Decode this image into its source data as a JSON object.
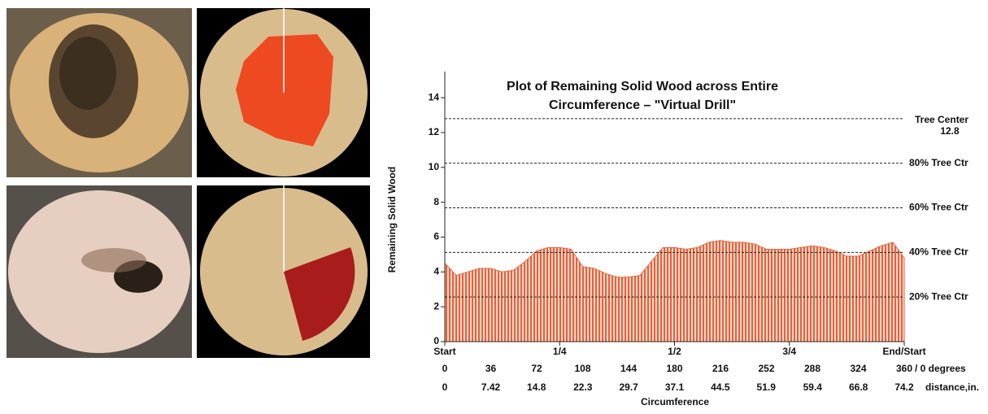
{
  "chart_data": {
    "type": "area",
    "title": [
      "Plot of Remaining Solid Wood across Entire",
      "Circumference –  \"Virtual Drill\""
    ],
    "ylabel": "Remaining Solid Wood",
    "xlabel": "Circumference",
    "x": [
      0,
      9,
      18,
      27,
      36,
      45,
      54,
      63,
      72,
      81,
      90,
      99,
      108,
      117,
      126,
      135,
      144,
      153,
      162,
      171,
      180,
      189,
      198,
      207,
      216,
      225,
      234,
      243,
      252,
      261,
      270,
      279,
      288,
      297,
      306,
      315,
      324,
      333,
      342,
      351,
      360
    ],
    "values": [
      4.5,
      3.8,
      4.0,
      4.2,
      4.2,
      4.0,
      4.1,
      4.6,
      5.2,
      5.4,
      5.4,
      5.3,
      4.3,
      4.2,
      3.9,
      3.7,
      3.7,
      3.8,
      4.6,
      5.4,
      5.4,
      5.3,
      5.4,
      5.7,
      5.8,
      5.7,
      5.7,
      5.6,
      5.3,
      5.3,
      5.3,
      5.4,
      5.5,
      5.4,
      5.2,
      4.9,
      4.9,
      5.2,
      5.5,
      5.7,
      4.8
    ],
    "color": "#e8603c",
    "xlim": [
      0,
      360
    ],
    "xticks": [
      {
        "value": 0,
        "label": "Start"
      },
      {
        "value": 90,
        "label": "1/4"
      },
      {
        "value": 180,
        "label": "1/2"
      },
      {
        "value": 270,
        "label": "3/4"
      },
      {
        "value": 360,
        "label": "End/Start"
      }
    ],
    "xticks_degrees": [
      0,
      36,
      72,
      108,
      144,
      180,
      216,
      252,
      288,
      324,
      360
    ],
    "x_unit_label": "/ 0 degrees",
    "x2lim": [
      0,
      74.2
    ],
    "x2ticks": [
      0,
      7.42,
      14.8,
      22.3,
      29.7,
      37.1,
      44.5,
      51.9,
      59.4,
      66.8,
      74.2
    ],
    "x2_unit_label": "distance,in.",
    "ylim": [
      0,
      15.5
    ],
    "yticks": [
      0,
      2,
      4,
      6,
      8,
      10,
      12,
      14
    ],
    "reference_lines": [
      {
        "value": 12.8,
        "label": "Tree Center"
      },
      {
        "value": 10.24,
        "label": "80% Tree Ctr"
      },
      {
        "value": 7.68,
        "label": "60% Tree Ctr"
      },
      {
        "value": 5.12,
        "label": "40% Tree Ctr"
      },
      {
        "value": 2.56,
        "label": "20% Tree Ctr"
      }
    ]
  }
}
